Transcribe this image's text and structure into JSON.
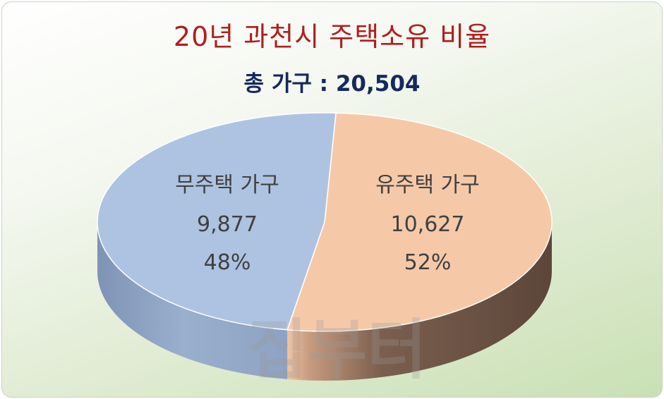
{
  "title": "20년 과천시 주택소유 비율",
  "subtitle": "총 가구 : 20,504",
  "watermark": "집부터",
  "colors": {
    "title": "#b01e1e",
    "subtitle": "#15295e",
    "no_house_top": "#aec3e1",
    "no_house_side": "#8a9dbd",
    "house_top": "#f5c9a8",
    "house_side": "#6e5548"
  },
  "chart_data": {
    "type": "pie",
    "style": "3d",
    "slices": [
      {
        "name": "유주택 가구",
        "value": 10627,
        "percent": "52%",
        "value_label": "10,627"
      },
      {
        "name": "무주택 가구",
        "value": 9877,
        "percent": "48%",
        "value_label": "9,877"
      }
    ]
  }
}
